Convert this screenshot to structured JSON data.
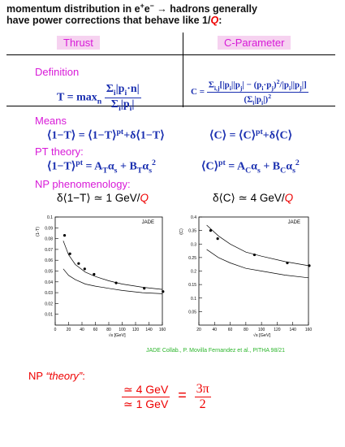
{
  "intro": [
    [
      "momentum distribution in ",
      "e",
      {
        "sup": "+"
      },
      "e",
      {
        "sup": "−"
      },
      " → hadrons generally"
    ],
    [
      "have power corrections that behave like 1/",
      {
        "red": "Q"
      },
      ":"
    ]
  ],
  "columns": [
    "Thrust",
    "C-Parameter"
  ],
  "definition": {
    "label": "Definition",
    "thrust": {
      "lhs": [
        "T = max",
        {
          "sub": "n"
        },
        " "
      ],
      "num": [
        "Σ",
        {
          "sub": "i"
        },
        "|p",
        {
          "sub": "i"
        },
        "·n|"
      ],
      "den": [
        "Σ",
        {
          "sub": "i"
        },
        "|p",
        {
          "sub": "i"
        },
        "|"
      ]
    },
    "cparam": {
      "lhs": [
        "C = "
      ],
      "num": [
        "Σ",
        {
          "sub": "i,j"
        },
        "[|p",
        {
          "sub": "i"
        },
        "||p",
        {
          "sub": "j"
        },
        "| − (p",
        {
          "sub": "i"
        },
        "·p",
        {
          "sub": "j"
        },
        ")",
        {
          "sup": "2"
        },
        "/|p",
        {
          "sub": "i"
        },
        "||p",
        {
          "sub": "j"
        },
        "|]"
      ],
      "den": [
        "(Σ",
        {
          "sub": "i"
        },
        "|p",
        {
          "sub": "i"
        },
        "|)",
        {
          "sup": "2"
        }
      ]
    }
  },
  "means": {
    "label": "Means",
    "thrust": [
      "⟨1−T⟩ = ⟨1−T⟩",
      {
        "sup": "pt"
      },
      "+δ⟨1−T⟩"
    ],
    "cparam": [
      "⟨C⟩ = ⟨C⟩",
      {
        "sup": "pt"
      },
      "+δ⟨C⟩"
    ]
  },
  "pt_theory": {
    "label": "PT theory:",
    "thrust": [
      "⟨1−T⟩",
      {
        "sup": "pt"
      },
      " = A",
      {
        "sub": "T"
      },
      "α",
      {
        "sub": "s"
      },
      " + B",
      {
        "sub": "T"
      },
      "α",
      {
        "sub": "s"
      },
      {
        "sup": "2"
      }
    ],
    "cparam": [
      "⟨C⟩",
      {
        "sup": "pt"
      },
      " = A",
      {
        "sub": "C"
      },
      "α",
      {
        "sub": "s"
      },
      " + B",
      {
        "sub": "C"
      },
      "α",
      {
        "sub": "s"
      },
      {
        "sup": "2"
      }
    ]
  },
  "np_phenomenology": {
    "label": "NP phenomenology:",
    "thrust": [
      "δ⟨1−T⟩ ≃ 1 GeV/",
      {
        "red": "Q"
      }
    ],
    "cparam": [
      "δ⟨C⟩ ≃ 4 GeV/",
      {
        "red": "Q"
      }
    ]
  },
  "plots": [
    {
      "ylabel": "⟨1-T⟩",
      "xlabel": "√s [GeV]",
      "legend": "JADE",
      "xlim": [
        0,
        160
      ],
      "ylim": [
        0,
        0.1
      ],
      "xticks": [
        0,
        20,
        40,
        60,
        80,
        100,
        120,
        140,
        160
      ],
      "yticks": [
        0.01,
        0.02,
        0.03,
        0.04,
        0.05,
        0.06,
        0.07,
        0.08,
        0.09,
        0.1
      ],
      "points": {
        "x": [
          14,
          22,
          35,
          44,
          58,
          91,
          133,
          161
        ],
        "y": [
          0.083,
          0.066,
          0.057,
          0.052,
          0.047,
          0.039,
          0.034,
          0.031
        ]
      },
      "curves": [
        {
          "x": [
            12,
            20,
            30,
            45,
            60,
            80,
            100,
            130,
            160
          ],
          "y": [
            0.078,
            0.065,
            0.056,
            0.049,
            0.045,
            0.041,
            0.038,
            0.035,
            0.033
          ]
        },
        {
          "x": [
            12,
            20,
            30,
            45,
            60,
            80,
            100,
            130,
            160
          ],
          "y": [
            0.052,
            0.046,
            0.042,
            0.038,
            0.036,
            0.034,
            0.032,
            0.03,
            0.029
          ]
        }
      ]
    },
    {
      "ylabel": "⟨C⟩",
      "xlabel": "√s [GeV]",
      "legend": "JADE",
      "xlim": [
        20,
        160
      ],
      "ylim": [
        0,
        0.4
      ],
      "xticks": [
        20,
        40,
        60,
        80,
        100,
        120,
        140,
        160
      ],
      "yticks": [
        0.05,
        0.1,
        0.15,
        0.2,
        0.25,
        0.3,
        0.35,
        0.4
      ],
      "points": {
        "x": [
          35,
          44,
          91,
          133,
          161
        ],
        "y": [
          0.35,
          0.32,
          0.26,
          0.23,
          0.22
        ]
      },
      "curves": [
        {
          "x": [
            30,
            45,
            60,
            80,
            100,
            130,
            160
          ],
          "y": [
            0.37,
            0.33,
            0.3,
            0.27,
            0.255,
            0.235,
            0.22
          ]
        },
        {
          "x": [
            30,
            45,
            60,
            80,
            100,
            130,
            160
          ],
          "y": [
            0.28,
            0.25,
            0.23,
            0.21,
            0.2,
            0.185,
            0.175
          ]
        }
      ]
    }
  ],
  "caption": "JADE Collab., P. Movilla Fernandez et al., PITHA 98/21",
  "np_theory": {
    "label": [
      "NP ",
      {
        "em": "“theory”"
      },
      ":"
    ],
    "num": "≃ 4 GeV",
    "den": "≃ 1 GeV",
    "eq": "=",
    "rnum": "3π",
    "rden": "2"
  }
}
